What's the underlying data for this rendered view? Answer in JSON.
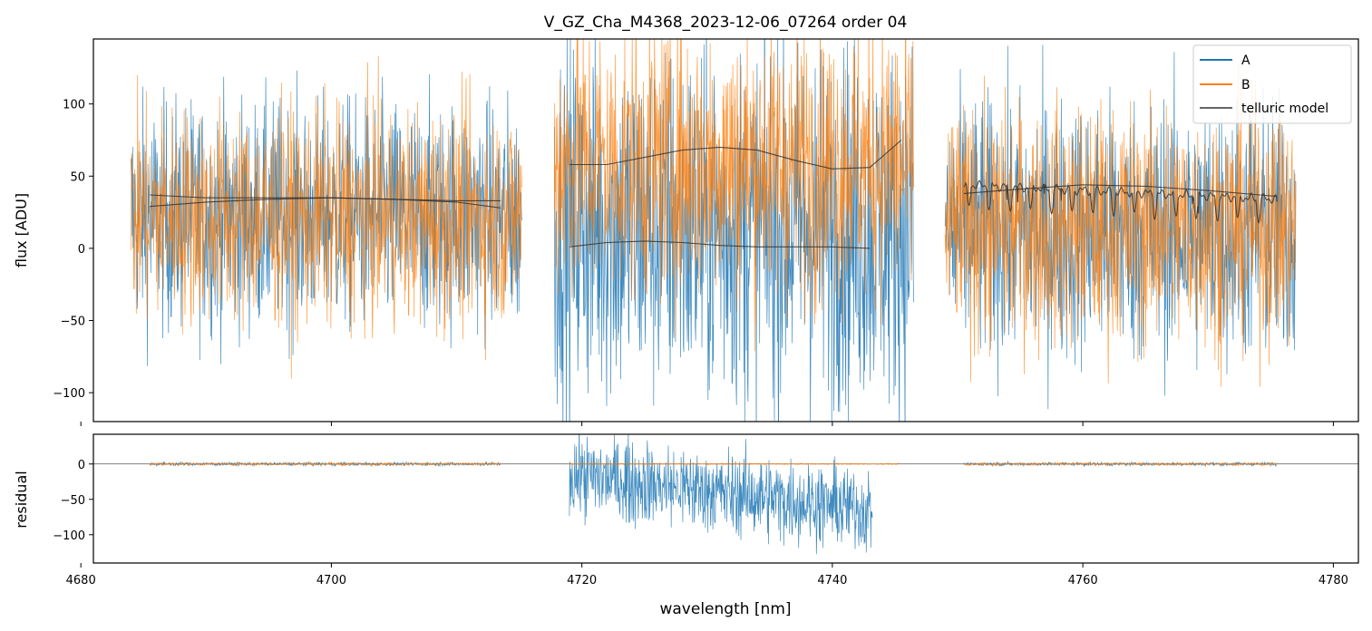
{
  "chart_data": [
    {
      "type": "line",
      "title": "V_GZ_Cha_M4368_2023-12-06_07264  order 04",
      "xlabel": "",
      "ylabel": "flux [ADU]",
      "xlim": [
        4681,
        4782
      ],
      "ylim": [
        -120,
        145
      ],
      "yticks": [
        -100,
        -50,
        0,
        50,
        100
      ],
      "ytick_labels": [
        "−100",
        "−50",
        "0",
        "50",
        "100"
      ],
      "xticks": [
        4680,
        4700,
        4720,
        4740,
        4760,
        4780
      ],
      "legend": {
        "position": "top-right",
        "entries": [
          {
            "label": "A",
            "color": "#1f77b4"
          },
          {
            "label": "B",
            "color": "#ff7f0e"
          },
          {
            "label": "telluric model",
            "color": "#333333"
          }
        ]
      },
      "segments": [
        {
          "x0": 4684.0,
          "x1": 4715.2,
          "A": {
            "mean": 22,
            "amp": 95
          },
          "B": {
            "mean": 22,
            "amp": 90
          }
        },
        {
          "x0": 4717.8,
          "x1": 4746.5,
          "A": {
            "mean": 15,
            "amp": 150
          },
          "B": {
            "mean": 60,
            "amp": 115
          }
        },
        {
          "x0": 4749.0,
          "x1": 4777.0,
          "A": {
            "mean": 12,
            "amp": 110
          },
          "B": {
            "mean": 15,
            "amp": 100
          }
        }
      ],
      "telluric_model": [
        {
          "name": "seg1-upper",
          "x": [
            4685.5,
            4690,
            4695,
            4700,
            4705,
            4710,
            4713.5
          ],
          "y": [
            37,
            35,
            35,
            35,
            34,
            33,
            33
          ]
        },
        {
          "name": "seg1-lower",
          "x": [
            4685.5,
            4690,
            4695,
            4700,
            4705,
            4710,
            4713.5
          ],
          "y": [
            29,
            32,
            34,
            35,
            34,
            32,
            28
          ]
        },
        {
          "name": "seg2-upper",
          "x": [
            4719,
            4722,
            4725,
            4728,
            4731,
            4734,
            4737,
            4740,
            4743,
            4745.5
          ],
          "y": [
            58,
            58,
            63,
            68,
            70,
            68,
            61,
            55,
            56,
            75
          ]
        },
        {
          "name": "seg2-lower",
          "x": [
            4719,
            4722,
            4725,
            4728,
            4731,
            4734,
            4737,
            4740,
            4743
          ],
          "y": [
            1,
            4,
            5,
            4,
            2,
            1,
            1,
            1,
            0
          ]
        },
        {
          "name": "seg3-smooth",
          "x": [
            4750.5,
            4755,
            4760,
            4765,
            4770,
            4775.5
          ],
          "y": [
            38,
            41,
            44,
            43,
            40,
            36
          ]
        },
        {
          "name": "seg3-lines",
          "x0": 4750.5,
          "x1": 4775.5,
          "base": 44,
          "trend": -0.4
        }
      ]
    },
    {
      "type": "line",
      "title": "",
      "xlabel": "wavelength [nm]",
      "ylabel": "residual",
      "xlim": [
        4681,
        4782
      ],
      "ylim": [
        -140,
        42
      ],
      "yticks": [
        -100,
        -50,
        0
      ],
      "ytick_labels": [
        "−100",
        "−50",
        "0"
      ],
      "xticks": [
        4680,
        4700,
        4720,
        4740,
        4760,
        4780
      ],
      "xtick_labels": [
        "4680",
        "4700",
        "4720",
        "4740",
        "4760",
        "4780"
      ],
      "zero_line": 0,
      "segments": [
        {
          "x0": 4685.5,
          "x1": 4713.5,
          "A": {
            "mean": 0,
            "amp": 3
          },
          "B": {
            "mean": 0,
            "amp": 2
          }
        },
        {
          "x0": 4719.0,
          "x1": 4743.2,
          "A": {
            "mean_start": -15,
            "mean_end": -65,
            "amp": 70
          },
          "B": {
            "mean": 0,
            "amp": 1
          }
        },
        {
          "x0": 4743.2,
          "x1": 4745.3,
          "A": null,
          "B": {
            "mean": 0,
            "amp": 1
          }
        },
        {
          "x0": 4750.5,
          "x1": 4775.5,
          "A": {
            "mean": 0,
            "amp": 3
          },
          "B": {
            "mean": 0,
            "amp": 2
          }
        }
      ]
    }
  ]
}
